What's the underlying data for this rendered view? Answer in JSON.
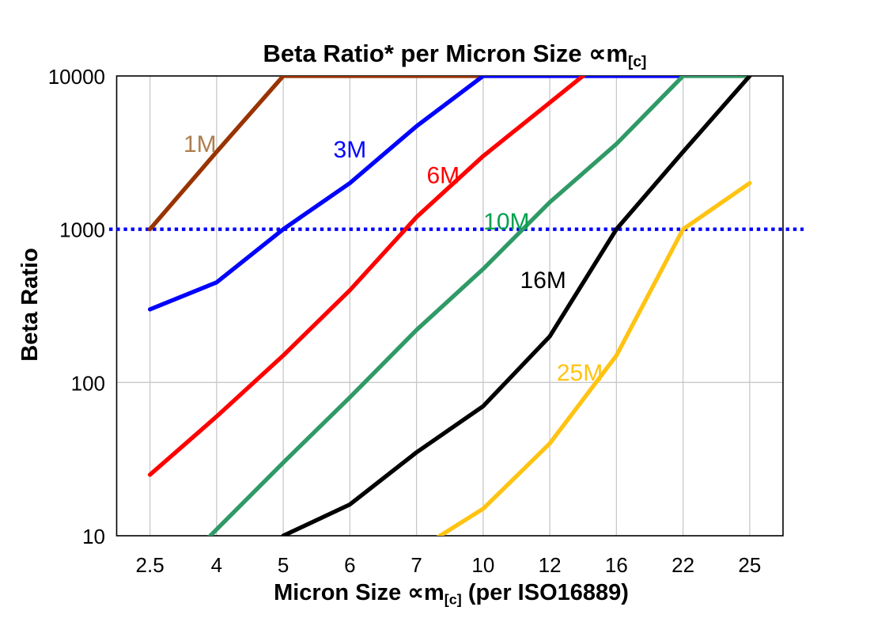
{
  "title": {
    "prefix": "Beta Ratio* per Micron Size ",
    "symbol": "∝m",
    "subscript": "[c]"
  },
  "y_axis": {
    "title": "Beta Ratio",
    "scale": "log",
    "range": [
      10,
      10000
    ],
    "tick_labels": [
      "10000",
      "1000",
      "100",
      "10"
    ],
    "tick_values": [
      10000,
      1000,
      100,
      10
    ]
  },
  "x_axis": {
    "title_prefix": "Micron Size ",
    "symbol": "∝m",
    "subscript": "[c]",
    "title_suffix": " (per ISO16889)",
    "tick_labels": [
      "2.5",
      "4",
      "5",
      "6",
      "7",
      "10",
      "12",
      "16",
      "22",
      "25"
    ]
  },
  "reference_line": {
    "value": 1000,
    "color": "#0000FF",
    "style": "dotted"
  },
  "colors": {
    "gridline": "#C8C8C8",
    "plot_border": "#000000",
    "text": "#000000"
  },
  "chart_data": {
    "type": "line",
    "title": "Beta Ratio* per Micron Size ∝m[c]",
    "xlabel": "Micron Size ∝m[c] (per ISO16889)",
    "ylabel": "Beta Ratio",
    "x_scale": "categorical",
    "y_scale": "log",
    "ylim": [
      10,
      10000
    ],
    "grid": true,
    "categories": [
      2.5,
      4,
      5,
      6,
      7,
      10,
      12,
      16,
      22,
      25
    ],
    "series": [
      {
        "name": "1M",
        "color": "#993300",
        "values": [
          1000,
          3200,
          10000,
          10000,
          10000,
          10000,
          null,
          null,
          null,
          null
        ],
        "label": {
          "text": "1M",
          "color": "#AE7D4E",
          "cat": 0.75,
          "value": 3600
        }
      },
      {
        "name": "3M",
        "color": "#0000FF",
        "values": [
          300,
          450,
          1000,
          2000,
          4700,
          10000,
          10000,
          10000,
          10000,
          null
        ],
        "label": {
          "text": "3M",
          "color": "#0000FF",
          "cat": 3.0,
          "value": 3300
        }
      },
      {
        "name": "6M",
        "color": "#FF0000",
        "values": [
          25,
          60,
          150,
          400,
          1200,
          3000,
          6700,
          15000,
          null,
          null
        ],
        "label": {
          "text": "6M",
          "color": "#FF0000",
          "cat": 4.4,
          "value": 2250
        }
      },
      {
        "name": "10M",
        "color": "#2F9A66",
        "values": [
          4,
          11,
          30,
          80,
          220,
          550,
          1500,
          3600,
          10000,
          10000
        ],
        "label": {
          "text": "10M",
          "color": "#00A14F",
          "cat": 5.35,
          "value": 1120
        }
      },
      {
        "name": "16M",
        "color": "#000000",
        "values": [
          null,
          null,
          10,
          16,
          35,
          70,
          200,
          1000,
          3200,
          10000
        ],
        "label": {
          "text": "16M",
          "color": "#000000",
          "cat": 5.9,
          "value": 465
        }
      },
      {
        "name": "25M",
        "color": "#FFC312",
        "values": [
          null,
          null,
          null,
          null,
          8,
          15,
          40,
          150,
          1000,
          2000
        ],
        "label": {
          "text": "25M",
          "color": "#FFC312",
          "cat": 6.45,
          "value": 116
        }
      }
    ]
  }
}
